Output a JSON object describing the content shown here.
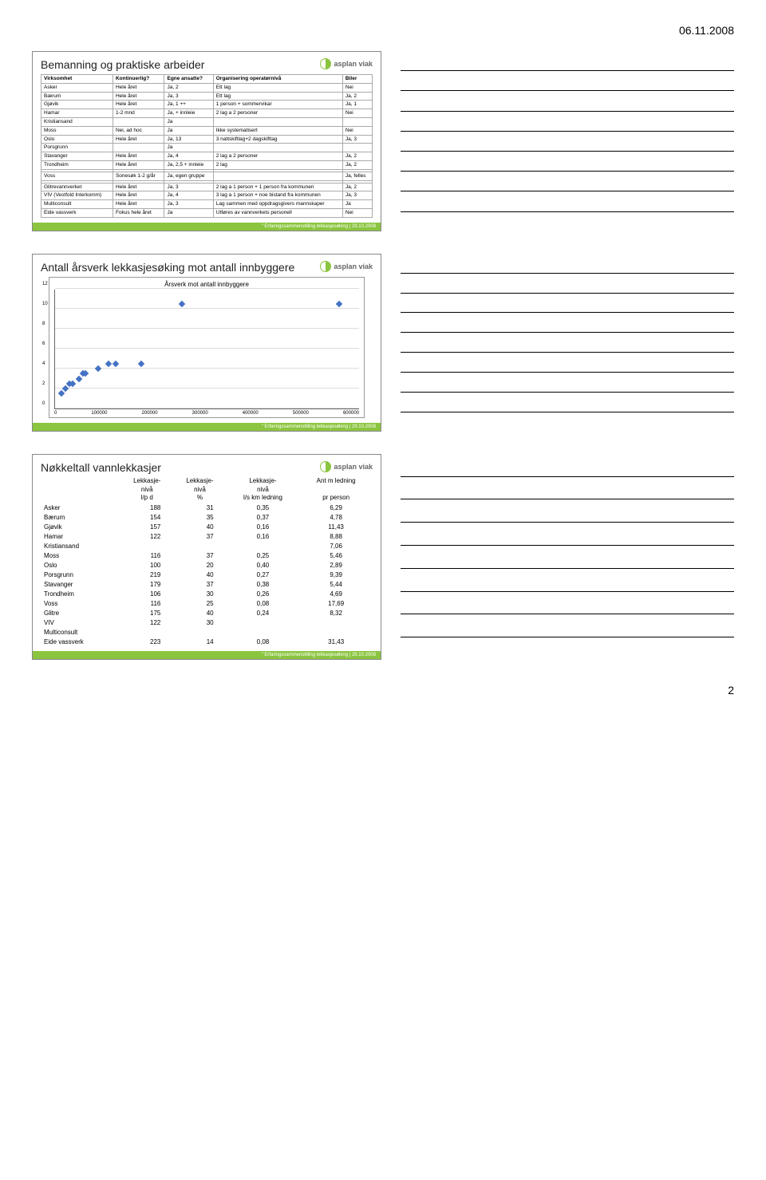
{
  "page": {
    "date": "06.11.2008",
    "number": "2"
  },
  "logo": {
    "text": "asplan viak"
  },
  "footer_text": "\" Erfaringssammenstilling lekkasjesøking | 29.10.2008",
  "slide1": {
    "title": "Bemanning og praktiske arbeider",
    "columns": [
      "Virksomhet",
      "Kontinuerlig?",
      "Egne ansatte?",
      "Organisering operatørnivå",
      "Biler"
    ],
    "rows": [
      [
        "Asker",
        "Hele året",
        "Ja, 2",
        "Ett lag",
        "Nei"
      ],
      [
        "Bærum",
        "Hele året",
        "Ja, 3",
        "Ett lag",
        "Ja, 2"
      ],
      [
        "Gjøvik",
        "Hele året",
        "Ja, 1 ++",
        "1 person + sommervikar",
        "Ja, 1"
      ],
      [
        "Hamar",
        "1-2 mnd",
        "Ja, + innleie",
        "2 lag a 2 personer",
        "Nei"
      ],
      [
        "Kristiansand",
        "",
        "Ja",
        "",
        ""
      ],
      [
        "Moss",
        "Nei, ad hoc",
        "Ja",
        "Ikke systematisert",
        "Nei"
      ],
      [
        "Oslo",
        "Hele året",
        "Ja, 13",
        "3 nattskiftlag+2 dagskiftlag",
        "Ja, 3"
      ],
      [
        "Porsgrunn",
        "",
        "Ja",
        "",
        ""
      ],
      [
        "Stavanger",
        "Hele året",
        "Ja, 4",
        "2 lag a 2 personer",
        "Ja, 2"
      ],
      [
        "Trondheim",
        "Hele året",
        "Ja, 2,5 + innleie",
        "2 lag",
        "Ja, 2"
      ],
      [
        "",
        "",
        "",
        "",
        ""
      ],
      [
        "Voss",
        "Sonesøk 1-2 g/år",
        "Ja, egen gruppe",
        "",
        "Ja, felles"
      ],
      [
        "",
        "",
        "",
        "",
        ""
      ],
      [
        "Glitrevannverket",
        "Hele året",
        "Ja, 3",
        "2 lag a 1 person + 1 person fra kommunen",
        "Ja, 2"
      ],
      [
        "VIV (Vestfold Interkomm)",
        "Hele året",
        "Ja, 4",
        "3 lag a 1 person + noe bistand fra kommunen",
        "Ja, 3"
      ],
      [
        "Multiconsult",
        "Hele året",
        "Ja, 3",
        "Lag sammen med oppdragsgivers mannskaper",
        "Ja"
      ],
      [
        "Eide vassverk",
        "Fokus hele året",
        "Ja",
        "Utføres av vannverkets personell",
        "Nei"
      ]
    ]
  },
  "slide2": {
    "title": "Antall årsverk lekkasjesøking mot antall innbyggere",
    "chart": {
      "type": "scatter",
      "title": "Årsverk mot antall innbyggere",
      "xlim": [
        0,
        600000
      ],
      "ylim": [
        0,
        12
      ],
      "xticks": [
        0,
        100000,
        200000,
        300000,
        400000,
        500000,
        600000
      ],
      "yticks": [
        0,
        2,
        4,
        6,
        8,
        10,
        12
      ],
      "marker_color": "#4472c4",
      "grid_color": "#dddddd",
      "points": [
        {
          "x": 12000,
          "y": 1.0
        },
        {
          "x": 20000,
          "y": 1.5
        },
        {
          "x": 28000,
          "y": 2.0
        },
        {
          "x": 35000,
          "y": 2.0
        },
        {
          "x": 48000,
          "y": 2.5
        },
        {
          "x": 55000,
          "y": 3.0
        },
        {
          "x": 60000,
          "y": 3.0
        },
        {
          "x": 85000,
          "y": 3.5
        },
        {
          "x": 105000,
          "y": 4.0
        },
        {
          "x": 120000,
          "y": 4.0
        },
        {
          "x": 170000,
          "y": 4.0
        },
        {
          "x": 250000,
          "y": 10.0
        },
        {
          "x": 560000,
          "y": 10.0
        }
      ]
    }
  },
  "slide3": {
    "title": "Nøkkeltall vannlekkasjer",
    "header": {
      "line1": [
        "",
        "Lekkasje-",
        "Lekkasje-",
        "Lekkasje-",
        "Ant m ledning"
      ],
      "line2": [
        "",
        "nivå",
        "nivå",
        "nivå",
        ""
      ],
      "line3": [
        "",
        "l/p d",
        "%",
        "l/s km ledning",
        "pr person"
      ]
    },
    "rows": [
      {
        "name": "Asker",
        "c1": "188",
        "c2": "31",
        "c3": "0,35",
        "c4": "6,29"
      },
      {
        "name": "Bærum",
        "c1": "154",
        "c2": "35",
        "c3": "0,37",
        "c4": "4,78"
      },
      {
        "name": "Gjøvik",
        "c1": "157",
        "c2": "40",
        "c3": "0,16",
        "c4": "11,43"
      },
      {
        "name": "Hamar",
        "c1": "122",
        "c2": "37",
        "c3": "0,16",
        "c4": "8,88"
      },
      {
        "name": "Kristiansand",
        "c1": "",
        "c2": "",
        "c3": "",
        "c4": "7,06"
      },
      {
        "name": "Moss",
        "c1": "116",
        "c2": "37",
        "c3": "0,25",
        "c4": "5,46"
      },
      {
        "name": "Oslo",
        "c1": "100",
        "c2": "20",
        "c3": "0,40",
        "c4": "2,89"
      },
      {
        "name": "Porsgrunn",
        "c1": "219",
        "c2": "40",
        "c3": "0,27",
        "c4": "9,39"
      },
      {
        "name": "Stavanger",
        "c1": "179",
        "c2": "37",
        "c3": "0,38",
        "c4": "5,44"
      },
      {
        "name": "Trondheim",
        "c1": "106",
        "c2": "30",
        "c3": "0,26",
        "c4": "4,69"
      },
      {
        "name": "Voss",
        "c1": "116",
        "c2": "25",
        "c3": "0,08",
        "c4": "17,69"
      },
      {
        "name": "Glitre",
        "c1": "175",
        "c2": "40",
        "c3": "0,24",
        "c4": "8,32"
      },
      {
        "name": "VIV",
        "c1": "122",
        "c2": "30",
        "c3": "",
        "c4": ""
      },
      {
        "name": "Multiconsult",
        "c1": "",
        "c2": "",
        "c3": "",
        "c4": ""
      },
      {
        "name": "Eide vassverk",
        "c1": "223",
        "c2": "14",
        "c3": "0,08",
        "c4": "31,43"
      }
    ]
  }
}
